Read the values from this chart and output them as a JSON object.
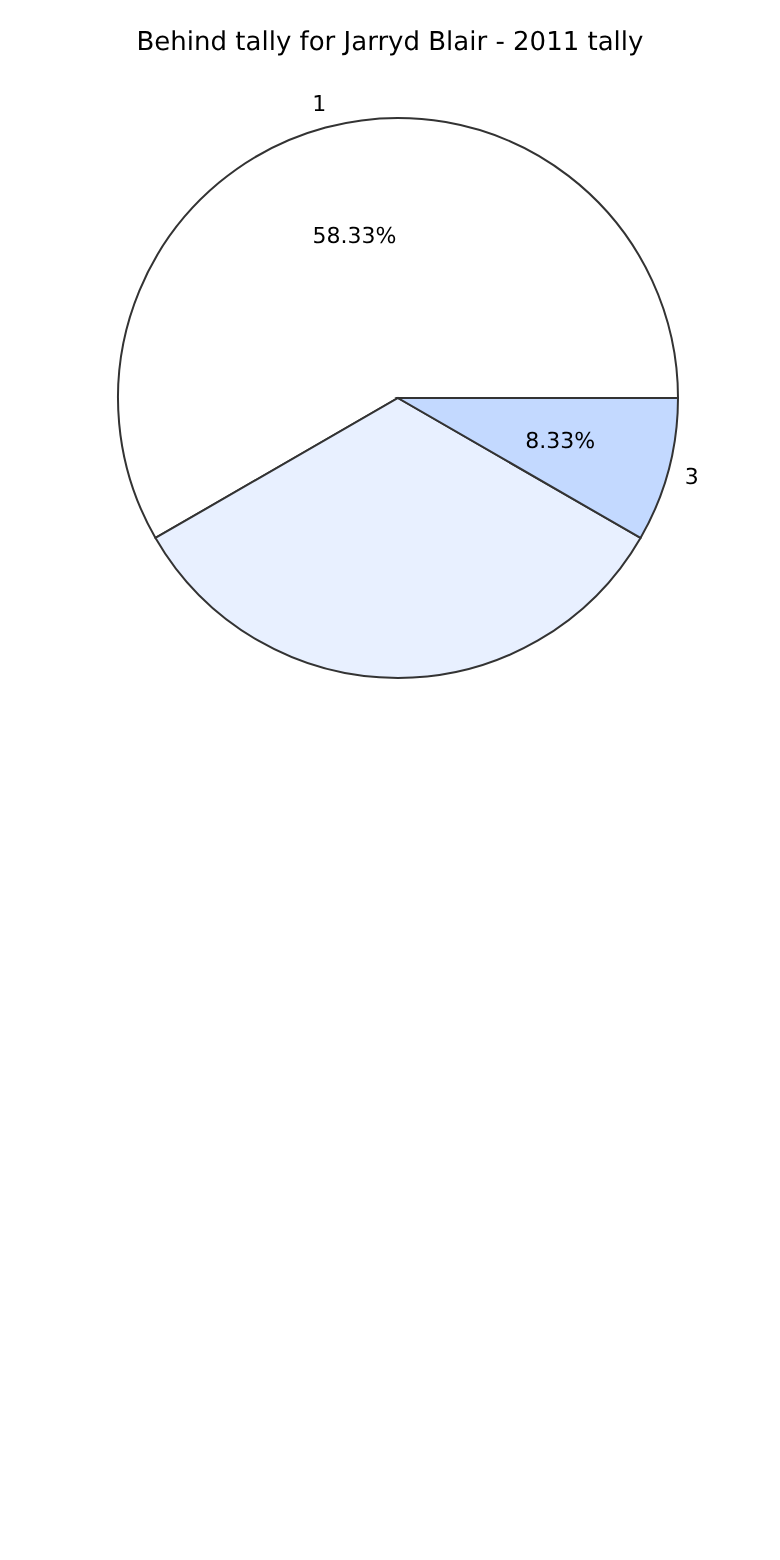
{
  "chart_data": {
    "type": "pie",
    "title": "Behind tally for Jarryd Blair - 2011 tally",
    "categories": [
      "1",
      null,
      "3"
    ],
    "values": [
      58.33,
      33.34,
      8.33
    ],
    "colors": [
      "#ffffff",
      "#e8f0ff",
      "#c3d9ff"
    ],
    "value_labels": [
      "58.33%",
      null,
      "8.33%"
    ],
    "legend": false
  }
}
